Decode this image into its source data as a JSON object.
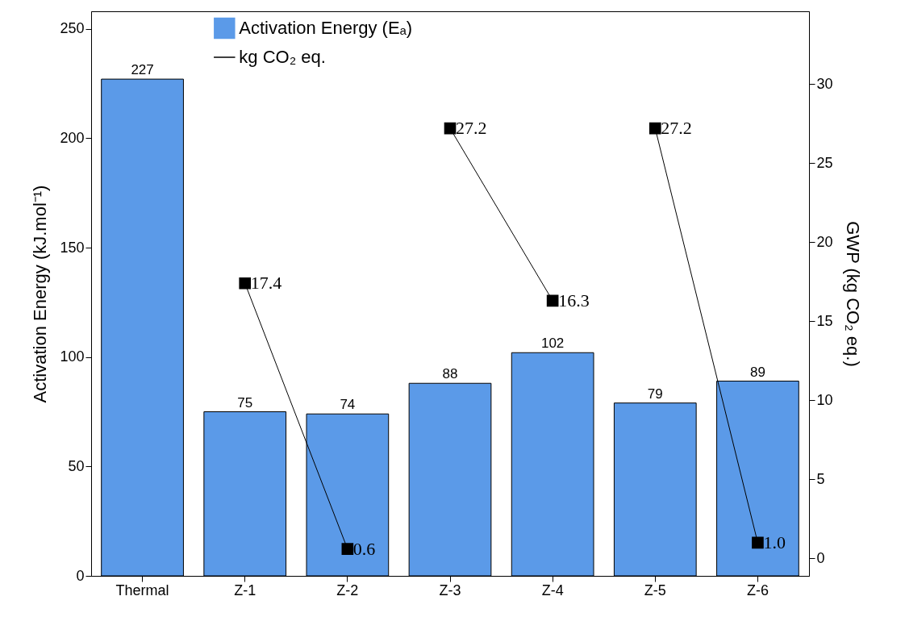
{
  "chart_data": {
    "type": "bar",
    "categories": [
      "Thermal",
      "Z-1",
      "Z-2",
      "Z-3",
      "Z-4",
      "Z-5",
      "Z-6"
    ],
    "ylabel": "Activation Energy (kJ.mol⁻¹)",
    "y2label": "GWP (kg CO₂ eq.)",
    "ylim": [
      0,
      258
    ],
    "yticks": [
      0,
      50,
      100,
      150,
      200,
      250
    ],
    "y2lim": [
      -1.1,
      34.6
    ],
    "y2ticks": [
      0,
      5,
      10,
      15,
      20,
      25,
      30
    ],
    "grid": false,
    "legend": "top left",
    "marker": "square",
    "data_labels": true,
    "series": [
      {
        "name": "Activation Energy (Eₐ)",
        "color": "#5b9ae8",
        "values": [
          227,
          75,
          74,
          88,
          102,
          79,
          89
        ]
      },
      {
        "name": "kg CO₂ eq.",
        "type": "line",
        "axis": "y2",
        "color": "#000000",
        "values": [
          null,
          17.4,
          0.6,
          null,
          null,
          null,
          null
        ],
        "value_labels": [
          null,
          "17.4",
          "0.6",
          null,
          null,
          null,
          null
        ]
      },
      {
        "type": "line",
        "axis": "y2",
        "color": "#000000",
        "values": [
          null,
          null,
          null,
          27.2,
          16.3,
          null,
          null
        ],
        "value_labels": [
          null,
          null,
          null,
          "27.2",
          "16.3",
          null,
          null
        ]
      },
      {
        "type": "line",
        "axis": "y2",
        "color": "#000000",
        "values": [
          null,
          null,
          null,
          null,
          null,
          27.2,
          1.0
        ],
        "value_labels": [
          null,
          null,
          null,
          null,
          null,
          "27.2",
          "1.0"
        ]
      }
    ]
  }
}
